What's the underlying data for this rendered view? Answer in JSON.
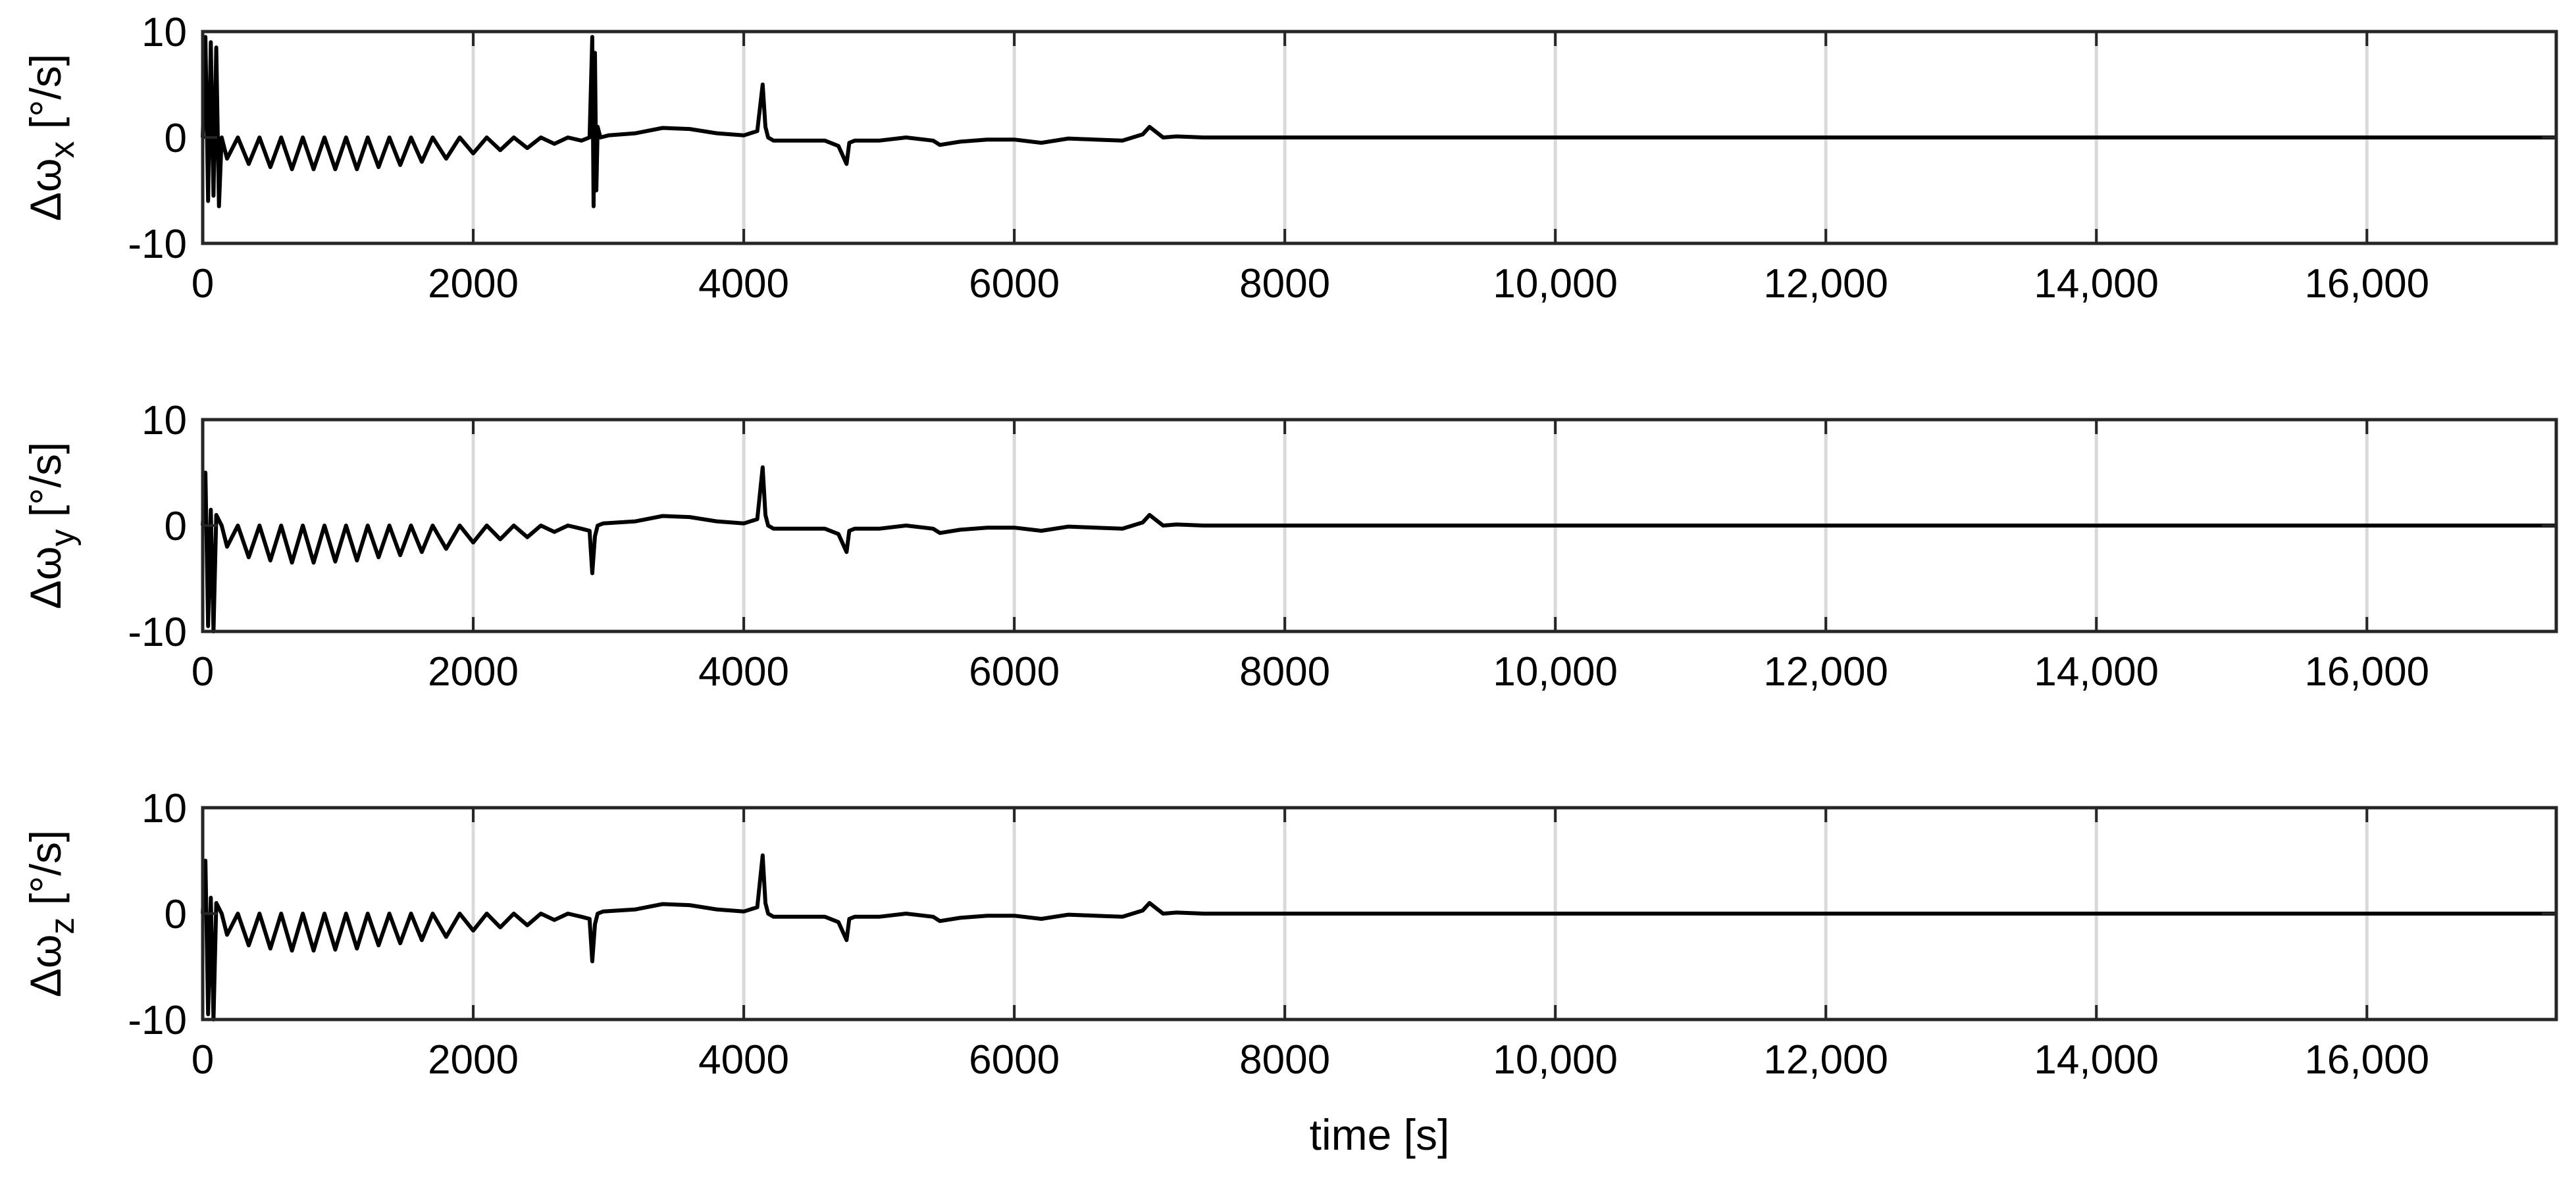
{
  "chart_data": [
    {
      "type": "line",
      "ylabel": {
        "symbol": "Δω",
        "subscript": "x",
        "unit": " [°/s]"
      },
      "xlim": [
        0,
        17400
      ],
      "ylim": [
        -10,
        10
      ],
      "xticks": [
        0,
        2000,
        4000,
        6000,
        8000,
        10000,
        12000,
        14000,
        16000
      ],
      "xtick_labels": [
        "0",
        "2000",
        "4000",
        "6000",
        "8000",
        "10,000",
        "12,000",
        "14,000",
        "16,000"
      ],
      "yticks": [
        10,
        0,
        -10
      ],
      "ytick_labels": [
        "10",
        "0",
        "-10"
      ],
      "grid": "vertical",
      "series": [
        {
          "color": "#000000",
          "x": [
            0,
            20,
            40,
            60,
            80,
            100,
            120,
            140,
            180,
            260,
            340,
            420,
            500,
            580,
            660,
            740,
            820,
            900,
            980,
            1060,
            1140,
            1220,
            1300,
            1380,
            1460,
            1540,
            1620,
            1700,
            1800,
            1900,
            2000,
            2100,
            2200,
            2300,
            2400,
            2500,
            2600,
            2700,
            2800,
            2860,
            2880,
            2890,
            2900,
            2910,
            2920,
            2940,
            3000,
            3200,
            3400,
            3600,
            3800,
            4000,
            4100,
            4140,
            4160,
            4180,
            4220,
            4400,
            4600,
            4700,
            4760,
            4780,
            4820,
            5000,
            5200,
            5400,
            5450,
            5600,
            5800,
            6000,
            6200,
            6400,
            6600,
            6800,
            6950,
            7000,
            7050,
            7100,
            7200,
            7400,
            7800,
            8500,
            10000,
            12000,
            14000,
            16000,
            17400
          ],
          "y": [
            0,
            9.5,
            -6,
            9,
            -5.5,
            8.5,
            -6.5,
            0,
            -2,
            0,
            -2.5,
            0,
            -2.8,
            0,
            -3,
            0,
            -3,
            0,
            -3,
            0,
            -3,
            0,
            -2.8,
            0,
            -2.6,
            0,
            -2.3,
            0,
            -2,
            0,
            -1.5,
            0,
            -1.2,
            0,
            -1,
            0,
            -0.6,
            0,
            -0.3,
            0,
            9.5,
            -6.5,
            8,
            -5,
            1,
            0,
            0.2,
            0.4,
            0.9,
            0.8,
            0.4,
            0.2,
            0.6,
            5,
            1,
            0,
            -0.3,
            -0.3,
            -0.3,
            -0.8,
            -2.5,
            -0.5,
            -0.3,
            -0.3,
            0,
            -0.3,
            -0.7,
            -0.4,
            -0.2,
            -0.2,
            -0.5,
            -0.1,
            -0.2,
            -0.3,
            0.3,
            1,
            0.5,
            0,
            0.1,
            0,
            0,
            0,
            0,
            0,
            0,
            0,
            0
          ]
        }
      ]
    },
    {
      "type": "line",
      "ylabel": {
        "symbol": "Δω",
        "subscript": "y",
        "unit": " [°/s]"
      },
      "xlim": [
        0,
        17400
      ],
      "ylim": [
        -10,
        10
      ],
      "xticks": [
        0,
        2000,
        4000,
        6000,
        8000,
        10000,
        12000,
        14000,
        16000
      ],
      "xtick_labels": [
        "0",
        "2000",
        "4000",
        "6000",
        "8000",
        "10,000",
        "12,000",
        "14,000",
        "16,000"
      ],
      "yticks": [
        10,
        0,
        -10
      ],
      "ytick_labels": [
        "10",
        "0",
        "-10"
      ],
      "grid": "vertical",
      "series": [
        {
          "color": "#000000",
          "x": [
            0,
            20,
            40,
            60,
            80,
            100,
            140,
            180,
            260,
            340,
            420,
            500,
            580,
            660,
            740,
            820,
            900,
            980,
            1060,
            1140,
            1220,
            1300,
            1380,
            1460,
            1540,
            1620,
            1700,
            1800,
            1900,
            2000,
            2100,
            2200,
            2300,
            2400,
            2500,
            2600,
            2700,
            2800,
            2860,
            2880,
            2900,
            2920,
            2960,
            3200,
            3400,
            3600,
            3800,
            4000,
            4100,
            4140,
            4160,
            4180,
            4220,
            4400,
            4600,
            4700,
            4760,
            4780,
            4820,
            5000,
            5200,
            5400,
            5450,
            5600,
            5800,
            6000,
            6200,
            6400,
            6600,
            6800,
            6950,
            7000,
            7050,
            7100,
            7200,
            7400,
            7800,
            8500,
            10000,
            12000,
            14000,
            16000,
            17400
          ],
          "y": [
            0,
            5,
            -9.5,
            1.5,
            -10,
            1,
            0,
            -2,
            0,
            -3,
            0,
            -3.3,
            0,
            -3.5,
            0,
            -3.5,
            0,
            -3.4,
            0,
            -3.3,
            0,
            -3,
            0,
            -2.8,
            0,
            -2.5,
            0,
            -2.2,
            0,
            -1.6,
            0,
            -1.3,
            0,
            -1.1,
            0,
            -0.6,
            0,
            -0.3,
            -0.5,
            -4.5,
            -1,
            0,
            0.2,
            0.4,
            0.9,
            0.8,
            0.4,
            0.2,
            0.6,
            5.5,
            1,
            0,
            -0.3,
            -0.3,
            -0.3,
            -0.8,
            -2.5,
            -0.5,
            -0.3,
            -0.3,
            0,
            -0.3,
            -0.7,
            -0.4,
            -0.2,
            -0.2,
            -0.5,
            -0.1,
            -0.2,
            -0.3,
            0.3,
            1,
            0.5,
            0,
            0.1,
            0,
            0,
            0,
            0,
            0,
            0,
            0,
            0
          ]
        }
      ]
    },
    {
      "type": "line",
      "ylabel": {
        "symbol": "Δω",
        "subscript": "z",
        "unit": " [°/s]"
      },
      "xlabel": "time [s]",
      "xlim": [
        0,
        17400
      ],
      "ylim": [
        -10,
        10
      ],
      "xticks": [
        0,
        2000,
        4000,
        6000,
        8000,
        10000,
        12000,
        14000,
        16000
      ],
      "xtick_labels": [
        "0",
        "2000",
        "4000",
        "6000",
        "8000",
        "10,000",
        "12,000",
        "14,000",
        "16,000"
      ],
      "yticks": [
        10,
        0,
        -10
      ],
      "ytick_labels": [
        "10",
        "0",
        "-10"
      ],
      "grid": "vertical",
      "series": [
        {
          "color": "#000000",
          "x": [
            0,
            20,
            40,
            60,
            80,
            100,
            140,
            180,
            260,
            340,
            420,
            500,
            580,
            660,
            740,
            820,
            900,
            980,
            1060,
            1140,
            1220,
            1300,
            1380,
            1460,
            1540,
            1620,
            1700,
            1800,
            1900,
            2000,
            2100,
            2200,
            2300,
            2400,
            2500,
            2600,
            2700,
            2800,
            2860,
            2880,
            2900,
            2920,
            2960,
            3200,
            3400,
            3600,
            3800,
            4000,
            4100,
            4140,
            4160,
            4180,
            4220,
            4400,
            4600,
            4700,
            4760,
            4780,
            4820,
            5000,
            5200,
            5400,
            5450,
            5600,
            5800,
            6000,
            6200,
            6400,
            6600,
            6800,
            6950,
            7000,
            7050,
            7100,
            7200,
            7400,
            7800,
            8500,
            10000,
            12000,
            14000,
            16000,
            17400
          ],
          "y": [
            0,
            5,
            -9.5,
            1.5,
            -10,
            1,
            0,
            -2,
            0,
            -3,
            0,
            -3.3,
            0,
            -3.5,
            0,
            -3.5,
            0,
            -3.4,
            0,
            -3.3,
            0,
            -3,
            0,
            -2.8,
            0,
            -2.5,
            0,
            -2.2,
            0,
            -1.6,
            0,
            -1.3,
            0,
            -1.1,
            0,
            -0.6,
            0,
            -0.3,
            -0.5,
            -4.5,
            -1,
            0,
            0.2,
            0.4,
            0.9,
            0.8,
            0.4,
            0.2,
            0.6,
            5.5,
            1,
            0,
            -0.3,
            -0.3,
            -0.3,
            -0.8,
            -2.5,
            -0.5,
            -0.3,
            -0.3,
            0,
            -0.3,
            -0.7,
            -0.4,
            -0.2,
            -0.2,
            -0.5,
            -0.1,
            -0.2,
            -0.3,
            0.3,
            1,
            0.5,
            0,
            0.1,
            0,
            0,
            0,
            0,
            0,
            0,
            0,
            0
          ]
        }
      ]
    }
  ]
}
